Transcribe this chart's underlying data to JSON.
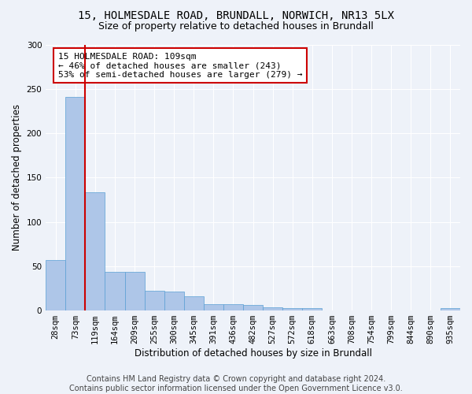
{
  "title_line1": "15, HOLMESDALE ROAD, BRUNDALL, NORWICH, NR13 5LX",
  "title_line2": "Size of property relative to detached houses in Brundall",
  "xlabel": "Distribution of detached houses by size in Brundall",
  "ylabel": "Number of detached properties",
  "categories": [
    "28sqm",
    "73sqm",
    "119sqm",
    "164sqm",
    "209sqm",
    "255sqm",
    "300sqm",
    "345sqm",
    "391sqm",
    "436sqm",
    "482sqm",
    "527sqm",
    "572sqm",
    "618sqm",
    "663sqm",
    "708sqm",
    "754sqm",
    "799sqm",
    "844sqm",
    "890sqm",
    "935sqm"
  ],
  "values": [
    57,
    241,
    133,
    44,
    44,
    22,
    21,
    16,
    7,
    7,
    6,
    4,
    3,
    3,
    0,
    0,
    0,
    0,
    0,
    0,
    3
  ],
  "bar_color": "#aec6e8",
  "bar_edge_color": "#5a9fd4",
  "vline_x_index": 1,
  "vline_color": "#cc0000",
  "annotation_text": "15 HOLMESDALE ROAD: 109sqm\n← 46% of detached houses are smaller (243)\n53% of semi-detached houses are larger (279) →",
  "annotation_box_color": "#ffffff",
  "annotation_box_edge": "#cc0000",
  "ylim": [
    0,
    300
  ],
  "yticks": [
    0,
    50,
    100,
    150,
    200,
    250,
    300
  ],
  "footer_line1": "Contains HM Land Registry data © Crown copyright and database right 2024.",
  "footer_line2": "Contains public sector information licensed under the Open Government Licence v3.0.",
  "bg_color": "#eef2f9",
  "grid_color": "#ffffff",
  "title_fontsize": 10,
  "subtitle_fontsize": 9,
  "axis_label_fontsize": 8.5,
  "tick_fontsize": 7.5,
  "annotation_fontsize": 8,
  "footer_fontsize": 7
}
